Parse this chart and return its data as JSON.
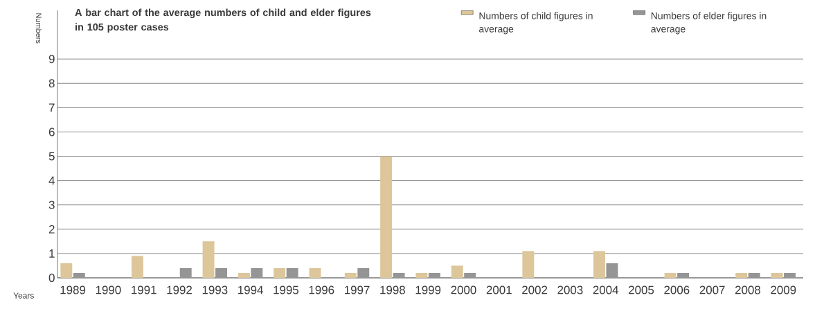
{
  "chart_data": {
    "type": "bar",
    "title": "A bar chart of the average numbers of child and elder figures in 105 poster cases",
    "xlabel": "Years",
    "ylabel": "Numbers",
    "categories": [
      "1989",
      "1990",
      "1991",
      "1992",
      "1993",
      "1994",
      "1995",
      "1996",
      "1997",
      "1998",
      "1999",
      "2000",
      "2001",
      "2002",
      "2003",
      "2004",
      "2005",
      "2006",
      "2007",
      "2008",
      "2009"
    ],
    "series": [
      {
        "name": "Numbers of child figures in average",
        "color": "#dcc69a",
        "values": [
          0.6,
          0,
          0.9,
          0,
          1.5,
          0.2,
          0.4,
          0.4,
          0.2,
          5.0,
          0.2,
          0.5,
          0,
          1.1,
          0,
          1.1,
          0,
          0.2,
          0,
          0.2,
          0.2
        ]
      },
      {
        "name": "Numbers of elder figures in average",
        "color": "#959595",
        "values": [
          0.2,
          0,
          0,
          0.4,
          0.4,
          0.4,
          0.4,
          0,
          0.4,
          0.2,
          0.2,
          0.2,
          0,
          0,
          0,
          0.6,
          0,
          0.2,
          0,
          0.2,
          0.2
        ]
      }
    ],
    "ylim": [
      0,
      11
    ],
    "yticks": [
      0,
      1,
      2,
      3,
      4,
      5,
      6,
      7,
      8,
      9
    ],
    "grid": "y",
    "legend": "top right"
  }
}
